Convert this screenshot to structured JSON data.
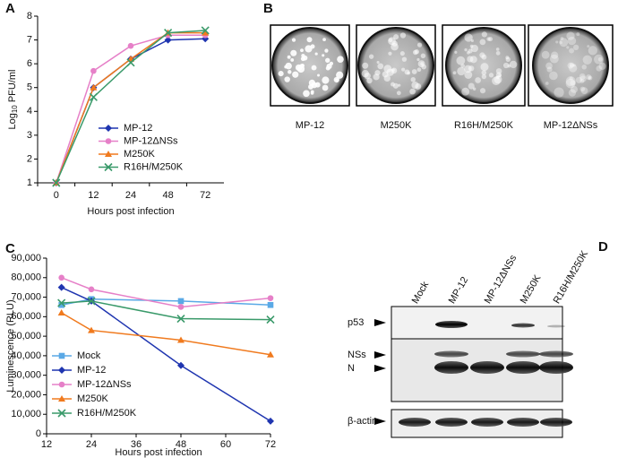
{
  "chart_data": [
    {
      "type": "line",
      "panel": "A",
      "xlabel": "Hours post infection",
      "ylabel": [
        "Log",
        "10",
        " PFU/ml"
      ],
      "categories": [
        0,
        12,
        24,
        48,
        72
      ],
      "ylim": [
        1,
        8
      ],
      "yticks": [
        1,
        2,
        3,
        4,
        5,
        6,
        7,
        8
      ],
      "series": [
        {
          "name": "MP-12",
          "color": "#1f35b0",
          "marker": "diamond",
          "values": [
            1,
            5.0,
            6.2,
            7.0,
            7.05
          ]
        },
        {
          "name": "MP-12ΔNSs",
          "color": "#e680c8",
          "marker": "circle",
          "values": [
            1,
            5.7,
            6.75,
            7.2,
            7.2
          ]
        },
        {
          "name": "M250K",
          "color": "#f07a1e",
          "marker": "triangle",
          "values": [
            1,
            5.0,
            6.2,
            7.3,
            7.3
          ]
        },
        {
          "name": "R16H/M250K",
          "color": "#3a9a6a",
          "marker": "x",
          "values": [
            1,
            4.6,
            6.05,
            7.3,
            7.4
          ]
        }
      ]
    },
    {
      "type": "scatter-line",
      "panel": "C",
      "xlabel": "Hours post infection",
      "ylabel": "Luminescence (RLU)",
      "x": [
        16,
        24,
        48,
        72
      ],
      "xlim": [
        12,
        72
      ],
      "xticks": [
        12,
        24,
        36,
        48,
        60,
        72
      ],
      "ylim": [
        0,
        90000
      ],
      "yticks": [
        0,
        {
          "value": 10000,
          "label": "10,000"
        },
        {
          "value": 20000,
          "label": "20,000"
        },
        {
          "value": 30000,
          "label": "30,000"
        },
        {
          "value": 40000,
          "label": "40,000"
        },
        {
          "value": 50000,
          "label": "50,000"
        },
        {
          "value": 60000,
          "label": "60,000"
        },
        {
          "value": 70000,
          "label": "70,000"
        },
        {
          "value": 80000,
          "label": "80,000"
        },
        {
          "value": 90000,
          "label": "90,000"
        }
      ],
      "series": [
        {
          "name": "Mock",
          "color": "#5aa9e6",
          "marker": "square",
          "values": [
            66000,
            69000,
            68000,
            66000
          ]
        },
        {
          "name": "MP-12",
          "color": "#1f35b0",
          "marker": "diamond",
          "values": [
            75000,
            68000,
            35000,
            6500
          ]
        },
        {
          "name": "MP-12ΔNSs",
          "color": "#e680c8",
          "marker": "circle",
          "values": [
            80000,
            74000,
            65000,
            69500
          ]
        },
        {
          "name": "M250K",
          "color": "#f07a1e",
          "marker": "triangle",
          "values": [
            62000,
            53000,
            48000,
            40500
          ]
        },
        {
          "name": "R16H/M250K",
          "color": "#3a9a6a",
          "marker": "x",
          "values": [
            67000,
            68000,
            59000,
            58500
          ]
        }
      ]
    }
  ],
  "plaques": {
    "panel": "B",
    "labels": [
      "MP-12",
      "M250K",
      "R16H/M250K",
      "MP-12ΔNSs"
    ]
  },
  "blot": {
    "panel": "D",
    "lanes": [
      "Mock",
      "MP-12",
      "MP-12ΔNSs",
      "M250K",
      "R16H/M250K"
    ],
    "rows": [
      "p53",
      "NSs",
      "N",
      "β-actin"
    ]
  }
}
